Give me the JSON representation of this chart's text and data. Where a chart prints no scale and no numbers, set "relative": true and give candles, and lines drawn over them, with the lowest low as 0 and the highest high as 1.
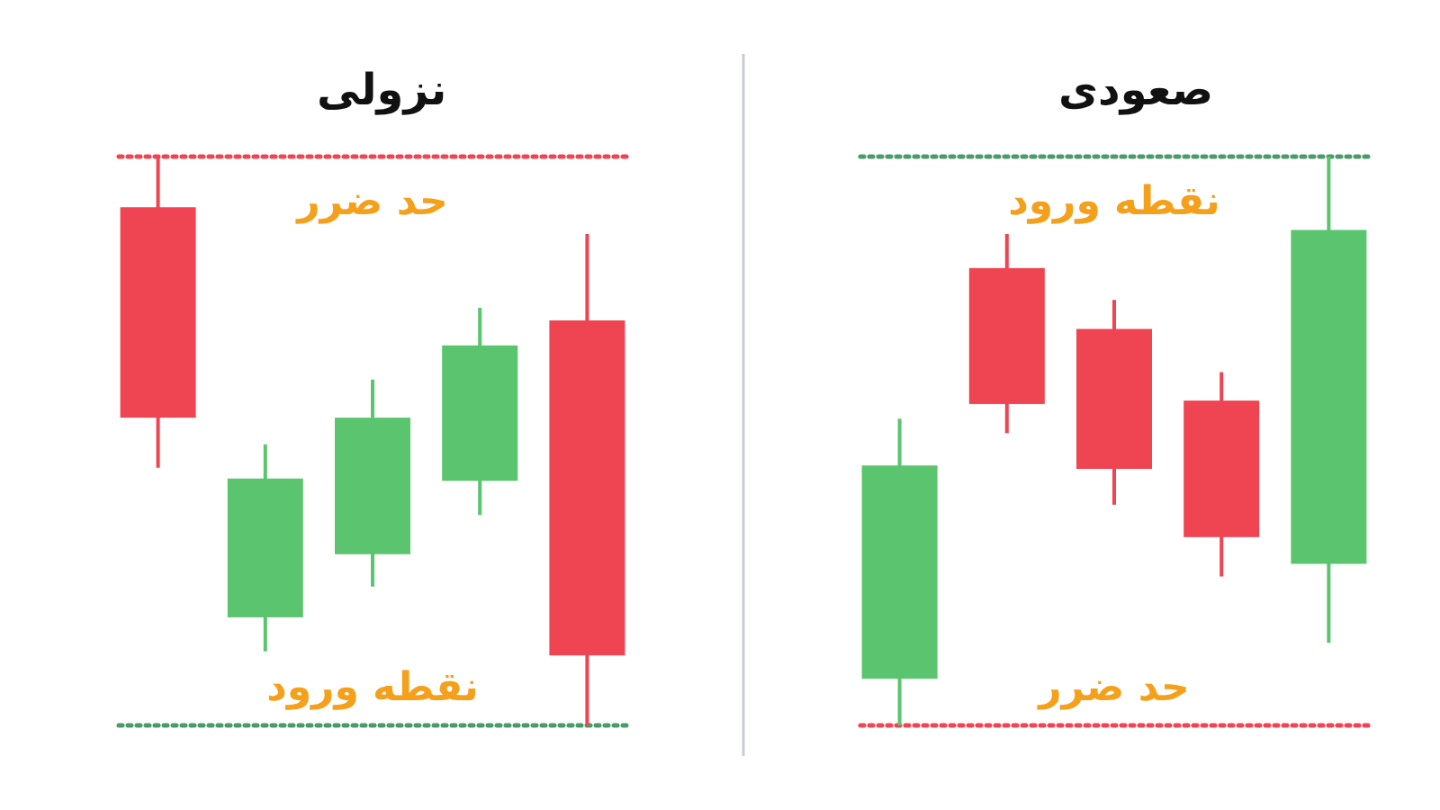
{
  "chart_data": [
    {
      "type": "candlestick",
      "title": "نزولی",
      "relative": true,
      "categories": [
        null,
        null,
        null,
        null,
        null
      ],
      "ohlc": [
        [
          0.911,
          1,
          0.453,
          0.541
        ],
        [
          0.19,
          0.494,
          0.13,
          0.434
        ],
        [
          0.301,
          0.608,
          0.244,
          0.541
        ],
        [
          0.43,
          0.734,
          0.37,
          0.668
        ],
        [
          0.712,
          0.864,
          0,
          0.123
        ]
      ],
      "colors": [
        "#ef4452",
        "#5ac46e",
        "#5ac46e",
        "#5ac46e",
        "#ef4452"
      ],
      "ref_lines": [
        {
          "axis": "y",
          "value": 1,
          "label": "حد ضرر",
          "color": "#ef4452",
          "line_style": "dotted"
        },
        {
          "axis": "y",
          "value": 0,
          "label": "نقطه ورود",
          "color": "#4a9a6a",
          "line_style": "dotted"
        }
      ]
    },
    {
      "type": "candlestick",
      "title": "صعودی",
      "relative": true,
      "categories": [
        null,
        null,
        null,
        null,
        null
      ],
      "ohlc": [
        [
          0.082,
          0.539,
          0,
          0.457
        ],
        [
          0.804,
          0.864,
          0.514,
          0.565
        ],
        [
          0.697,
          0.748,
          0.388,
          0.451
        ],
        [
          0.571,
          0.621,
          0.262,
          0.331
        ],
        [
          0.284,
          1,
          0.145,
          0.871
        ]
      ],
      "colors": [
        "#5ac46e",
        "#ef4452",
        "#ef4452",
        "#ef4452",
        "#5ac46e"
      ],
      "ref_lines": [
        {
          "axis": "y",
          "value": 1,
          "label": "نقطه ورود",
          "color": "#4a9a6a",
          "line_style": "dotted"
        },
        {
          "axis": "y",
          "value": 0,
          "label": "حد ضرر",
          "color": "#ef4452",
          "line_style": "dotted"
        }
      ]
    }
  ]
}
